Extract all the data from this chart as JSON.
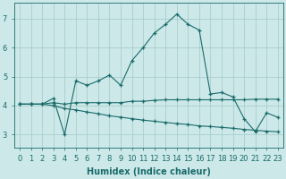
{
  "bg_color": "#cce8e8",
  "line_color": "#1a6b6b",
  "grid_color": "#aacece",
  "xlabel": "Humidex (Indice chaleur)",
  "xlabel_fontsize": 7,
  "tick_fontsize": 6,
  "yticks": [
    3,
    4,
    5,
    6,
    7
  ],
  "xticks": [
    0,
    1,
    2,
    3,
    4,
    5,
    6,
    7,
    8,
    9,
    10,
    11,
    12,
    13,
    14,
    15,
    16,
    17,
    18,
    19,
    20,
    21,
    22,
    23
  ],
  "xlim": [
    -0.5,
    23.5
  ],
  "ylim": [
    2.55,
    7.55
  ],
  "line1_x": [
    0,
    1,
    2,
    3,
    4,
    5,
    6,
    7,
    8,
    9,
    10,
    11,
    12,
    13,
    14,
    15,
    16,
    17,
    18,
    19,
    20,
    21,
    22,
    23
  ],
  "line1_y": [
    4.05,
    4.05,
    4.05,
    4.25,
    3.0,
    4.85,
    4.7,
    4.85,
    5.05,
    4.7,
    5.55,
    6.0,
    6.5,
    6.8,
    7.15,
    6.8,
    6.6,
    4.4,
    4.45,
    4.3,
    3.55,
    3.1,
    3.75,
    3.6
  ],
  "line2_x": [
    0,
    1,
    2,
    3,
    4,
    5,
    6,
    7,
    8,
    9,
    10,
    11,
    12,
    13,
    14,
    15,
    16,
    17,
    18,
    19,
    20,
    21,
    22,
    23
  ],
  "line2_y": [
    4.05,
    4.05,
    4.05,
    4.1,
    4.05,
    4.1,
    4.1,
    4.1,
    4.1,
    4.1,
    4.15,
    4.15,
    4.18,
    4.2,
    4.2,
    4.2,
    4.2,
    4.2,
    4.2,
    4.2,
    4.2,
    4.22,
    4.22,
    4.22
  ],
  "line3_x": [
    0,
    1,
    2,
    3,
    4,
    5,
    6,
    7,
    8,
    9,
    10,
    11,
    12,
    13,
    14,
    15,
    16,
    17,
    18,
    19,
    20,
    21,
    22,
    23
  ],
  "line3_y": [
    4.05,
    4.05,
    4.05,
    4.0,
    3.9,
    3.85,
    3.78,
    3.72,
    3.65,
    3.6,
    3.55,
    3.5,
    3.46,
    3.42,
    3.38,
    3.35,
    3.3,
    3.28,
    3.25,
    3.22,
    3.18,
    3.15,
    3.12,
    3.1
  ]
}
